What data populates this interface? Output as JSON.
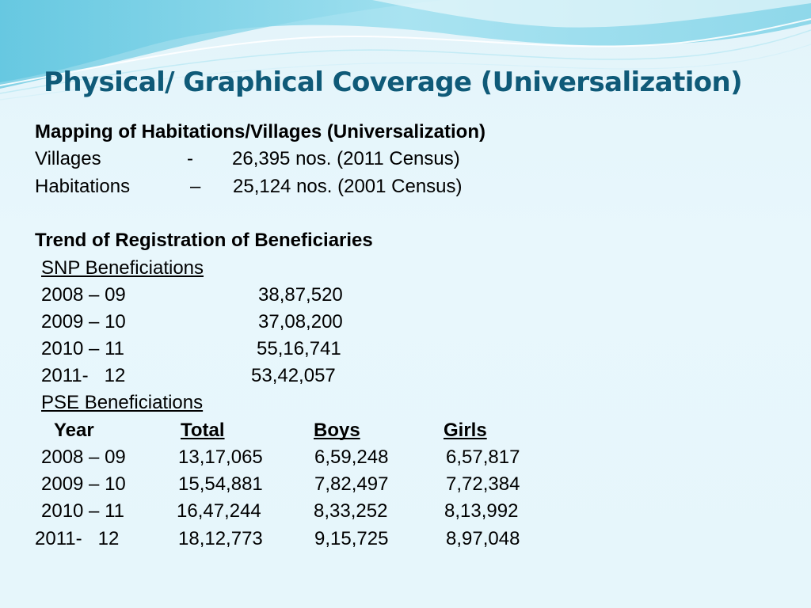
{
  "slide": {
    "title": "Physical/ Graphical Coverage (Universalization)",
    "mapping": {
      "heading": "Mapping of Habitations/Villages (Universalization)",
      "rows": [
        {
          "label": "Villages",
          "sep": "-",
          "value": "26,395 nos. (2011 Census)"
        },
        {
          "label": "Habitations",
          "sep": "–",
          "value": "25,124 nos.  (2001 Census)"
        }
      ]
    },
    "trend": {
      "heading": "Trend of Registration of Beneficiaries",
      "snp": {
        "heading": "SNP Beneficiations",
        "rows": [
          {
            "year": "2008 – 09",
            "value": "38,87,520"
          },
          {
            "year": "2009 – 10",
            "value": "37,08,200"
          },
          {
            "year": "2010 – 11",
            "value": "55,16,741"
          },
          {
            "year": "2011-   12",
            "value": "53,42,057"
          }
        ]
      },
      "pse": {
        "heading": "PSE Beneficiations",
        "columns": [
          "Year",
          "Total",
          "Boys",
          "Girls"
        ],
        "rows": [
          {
            "year": "2008 – 09",
            "total": "13,17,065",
            "boys": "6,59,248",
            "girls": "6,57,817"
          },
          {
            "year": "2009 – 10",
            "total": "15,54,881",
            "boys": "7,82,497",
            "girls": "7,72,384"
          },
          {
            "year": "2010 – 11",
            "total": "16,47,244",
            "boys": "8,33,252",
            "girls": "8,13,992"
          },
          {
            "year": "2011-   12",
            "total": "18,12,773",
            "boys": "9,15,725",
            "girls": "8,97,048"
          }
        ]
      }
    }
  }
}
